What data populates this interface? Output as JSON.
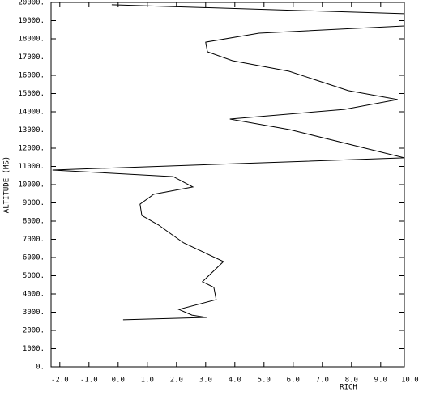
{
  "chart_data": {
    "type": "line",
    "x_label": "RICH",
    "y_label": "ALTITUDE (MS)",
    "x": [
      0.17,
      3.03,
      2.53,
      2.08,
      3.36,
      3.28,
      2.89,
      3.61,
      2.25,
      1.78,
      1.39,
      0.81,
      0.75,
      1.22,
      2.56,
      1.89,
      -2.25,
      9.81,
      5.89,
      3.83,
      7.75,
      9.58,
      7.89,
      5.86,
      3.92,
      3.06,
      3.0,
      4.83,
      9.81,
      null,
      9.81,
      -0.22
    ],
    "series": [
      {
        "color": "#000000",
        "values": [
          2580,
          2710,
          2840,
          3150,
          3690,
          4360,
          4670,
          5780,
          6800,
          7330,
          7780,
          8310,
          8930,
          9470,
          9870,
          10440,
          10800,
          11470,
          13020,
          13600,
          14130,
          14670,
          15160,
          16220,
          16800,
          17290,
          17820,
          18310,
          18710,
          null,
          19380,
          19870
        ]
      }
    ],
    "xlim": [
      -2.3,
      10.0
    ],
    "ylim": [
      0,
      20000
    ],
    "xticks": [
      {
        "value": -2,
        "label": "-2.0"
      },
      {
        "value": -1,
        "label": "-1.0"
      },
      {
        "value": 0,
        "label": "0.0"
      },
      {
        "value": 1,
        "label": "1.0"
      },
      {
        "value": 2,
        "label": "2.0"
      },
      {
        "value": 3,
        "label": "3.0"
      },
      {
        "value": 4,
        "label": "4.0"
      },
      {
        "value": 5,
        "label": "5.0"
      },
      {
        "value": 6,
        "label": "6.0"
      },
      {
        "value": 7,
        "label": "7.0"
      },
      {
        "value": 8,
        "label": "8.0"
      },
      {
        "value": 9,
        "label": "9.0"
      },
      {
        "value": 10,
        "label": "10.0"
      }
    ],
    "yticks": [
      {
        "value": 0,
        "label": "0."
      },
      {
        "value": 1000,
        "label": "1000."
      },
      {
        "value": 2000,
        "label": "2000."
      },
      {
        "value": 3000,
        "label": "3000."
      },
      {
        "value": 4000,
        "label": "4000."
      },
      {
        "value": 5000,
        "label": "5000."
      },
      {
        "value": 6000,
        "label": "6000."
      },
      {
        "value": 7000,
        "label": "7000."
      },
      {
        "value": 8000,
        "label": "8000."
      },
      {
        "value": 9000,
        "label": "9000."
      },
      {
        "value": 10000,
        "label": "10000."
      },
      {
        "value": 11000,
        "label": "11000."
      },
      {
        "value": 12000,
        "label": "12000."
      },
      {
        "value": 13000,
        "label": "13000."
      },
      {
        "value": 14000,
        "label": "14000."
      },
      {
        "value": 15000,
        "label": "15000."
      },
      {
        "value": 16000,
        "label": "16000."
      },
      {
        "value": 17000,
        "label": "17000."
      },
      {
        "value": 18000,
        "label": "18000."
      },
      {
        "value": 19000,
        "label": "19000."
      },
      {
        "value": 20000,
        "label": "20000."
      }
    ]
  }
}
